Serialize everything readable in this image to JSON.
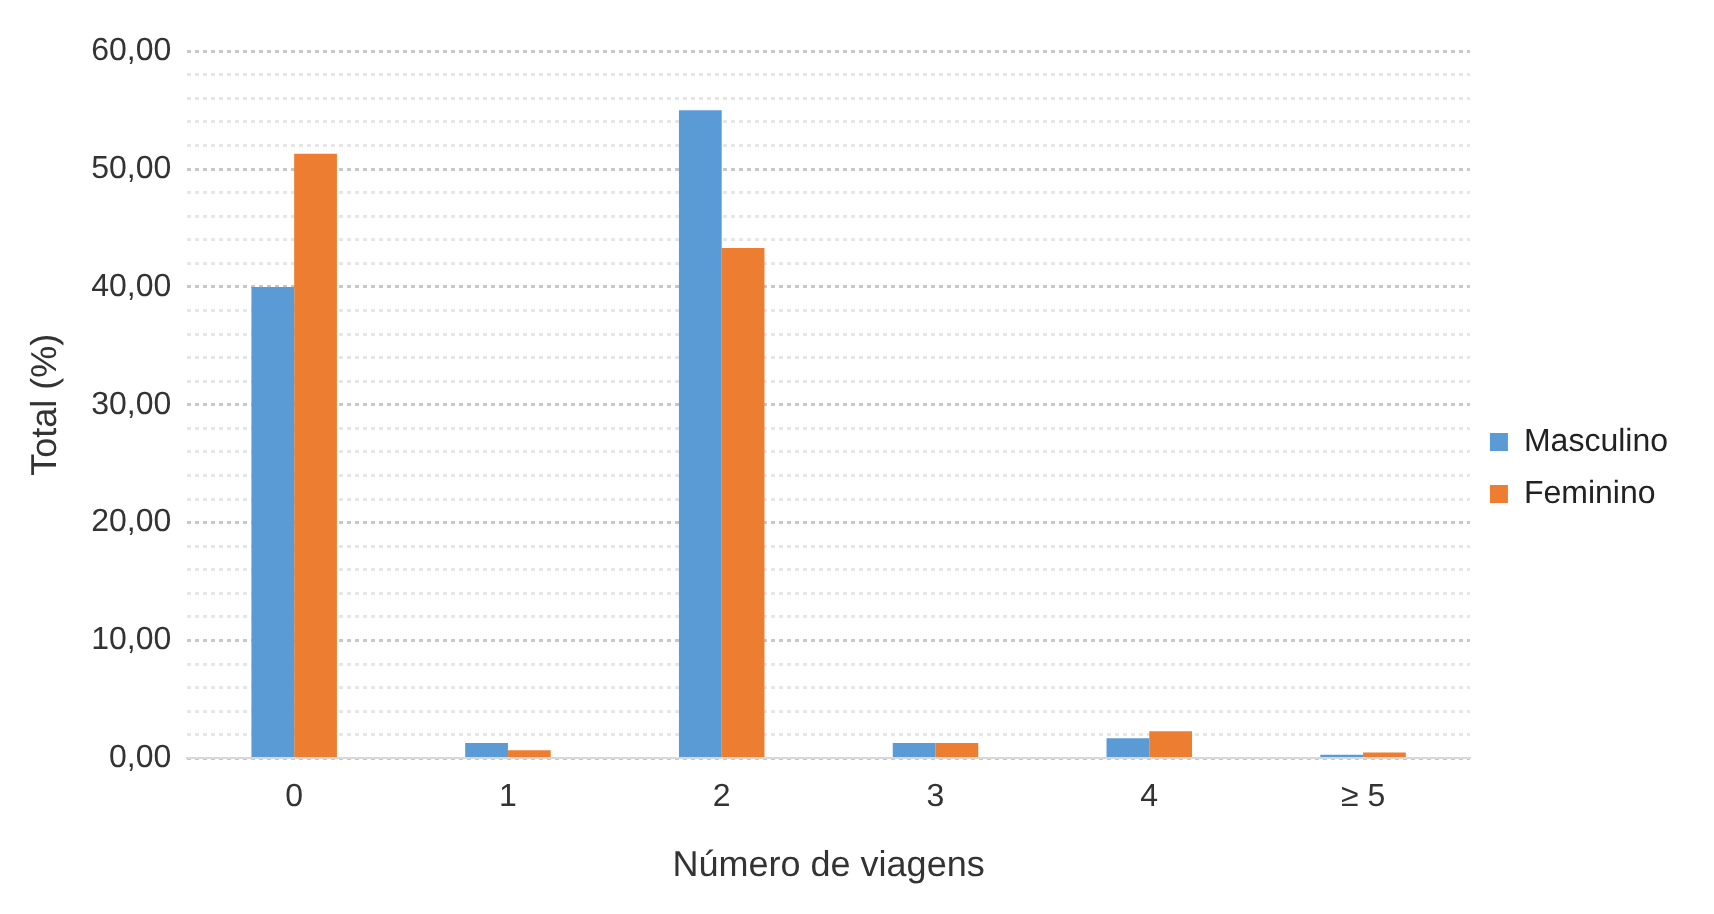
{
  "chart_data": {
    "type": "bar",
    "xlabel": "Número de viagens",
    "ylabel": "Total (%)",
    "categories": [
      "0",
      "1",
      "2",
      "3",
      "4",
      "≥ 5"
    ],
    "series": [
      {
        "name": "Masculino",
        "color": "#5b9bd5",
        "values": [
          40.0,
          1.3,
          55.0,
          1.3,
          1.7,
          0.3
        ]
      },
      {
        "name": "Feminino",
        "color": "#ed7d31",
        "values": [
          51.3,
          0.7,
          43.3,
          1.3,
          2.3,
          0.5
        ]
      }
    ],
    "ylim": [
      0,
      60
    ],
    "yticks": [
      {
        "value": 0,
        "label": "0,00"
      },
      {
        "value": 2,
        "label": null
      },
      {
        "value": 4,
        "label": null
      },
      {
        "value": 6,
        "label": null
      },
      {
        "value": 8,
        "label": null
      },
      {
        "value": 10,
        "label": "10,00"
      },
      {
        "value": 12,
        "label": null
      },
      {
        "value": 14,
        "label": null
      },
      {
        "value": 16,
        "label": null
      },
      {
        "value": 18,
        "label": null
      },
      {
        "value": 20,
        "label": "20,00"
      },
      {
        "value": 22,
        "label": null
      },
      {
        "value": 24,
        "label": null
      },
      {
        "value": 26,
        "label": null
      },
      {
        "value": 28,
        "label": null
      },
      {
        "value": 30,
        "label": "30,00"
      },
      {
        "value": 32,
        "label": null
      },
      {
        "value": 34,
        "label": null
      },
      {
        "value": 36,
        "label": null
      },
      {
        "value": 38,
        "label": null
      },
      {
        "value": 40,
        "label": "40,00"
      },
      {
        "value": 42,
        "label": null
      },
      {
        "value": 44,
        "label": null
      },
      {
        "value": 46,
        "label": null
      },
      {
        "value": 48,
        "label": null
      },
      {
        "value": 50,
        "label": "50,00"
      },
      {
        "value": 52,
        "label": null
      },
      {
        "value": 54,
        "label": null
      },
      {
        "value": 56,
        "label": null
      },
      {
        "value": 58,
        "label": null
      },
      {
        "value": 60,
        "label": "60,00"
      }
    ],
    "grid": "y",
    "legend": "right"
  }
}
